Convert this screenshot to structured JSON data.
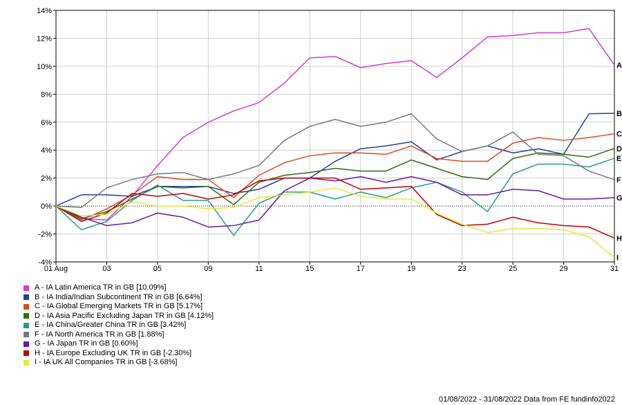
{
  "chart_data": {
    "type": "line",
    "x_ticks": [
      "01 Aug",
      "03",
      "05",
      "09",
      "11",
      "15",
      "17",
      "19",
      "23",
      "25",
      "29",
      "31"
    ],
    "x_tick_positions": [
      1,
      3,
      5,
      7,
      9,
      11,
      13,
      15,
      17,
      19,
      21,
      23
    ],
    "x_points": [
      1,
      2,
      3,
      4,
      5,
      6,
      7,
      8,
      9,
      10,
      11,
      12,
      13,
      14,
      15,
      16,
      17,
      18,
      19,
      20,
      21,
      22,
      23
    ],
    "y_ticks": [
      "14%",
      "12%",
      "10%",
      "8%",
      "6%",
      "4%",
      "2%",
      "0%",
      "-2%",
      "-4%"
    ],
    "ylim": [
      -4,
      14
    ],
    "xlim": [
      1,
      23
    ],
    "grid": true,
    "legend_placement": "bottom-left",
    "series": [
      {
        "name": "A - IA Latin America TR in GB [10.09%]",
        "end_label": "A",
        "color": "#d43bd4",
        "values": [
          0,
          -0.9,
          -1.0,
          0.7,
          2.9,
          4.9,
          6.0,
          6.8,
          7.4,
          8.8,
          10.6,
          10.7,
          9.9,
          10.2,
          10.4,
          9.2,
          10.6,
          12.1,
          12.2,
          12.4,
          12.4,
          12.7,
          10.09
        ]
      },
      {
        "name": "B - IA India/Indian Subcontinent TR in GB [6.64%]",
        "end_label": "B",
        "color": "#2040a0",
        "values": [
          0,
          0.8,
          0.8,
          0.7,
          1.4,
          1.4,
          1.4,
          0.9,
          1.2,
          2.0,
          2.0,
          3.2,
          4.1,
          4.3,
          4.6,
          3.3,
          3.9,
          4.3,
          3.8,
          4.1,
          3.7,
          6.6,
          6.64
        ]
      },
      {
        "name": "C - IA Global Emerging Markets TR in GB [5.17%]",
        "end_label": "C",
        "color": "#e04a20",
        "values": [
          0,
          -1.0,
          -0.2,
          0.8,
          2.1,
          1.9,
          1.9,
          0.6,
          2.2,
          3.1,
          3.6,
          3.8,
          3.8,
          3.7,
          4.3,
          3.4,
          3.2,
          3.2,
          4.5,
          4.9,
          4.7,
          4.9,
          5.17
        ]
      },
      {
        "name": "D - IA Asia Pacific Excluding Japan TR in GB [4.12%]",
        "end_label": "D",
        "color": "#2e6b10",
        "values": [
          0,
          -0.9,
          -0.4,
          0.5,
          1.4,
          1.3,
          1.4,
          0.1,
          1.7,
          2.2,
          2.4,
          2.7,
          2.5,
          2.5,
          3.3,
          2.7,
          2.1,
          1.9,
          3.4,
          3.8,
          3.7,
          3.5,
          4.12
        ]
      },
      {
        "name": "E - IA China/Greater China TR in GB [3.42%]",
        "end_label": "E",
        "color": "#2a9a90",
        "values": [
          0,
          -1.7,
          -1.1,
          0.4,
          1.5,
          0.4,
          0.4,
          -2.1,
          0.2,
          1.0,
          1.0,
          0.5,
          1.0,
          0.6,
          1.3,
          1.7,
          1.0,
          -0.4,
          2.3,
          3.0,
          3.0,
          2.8,
          3.42
        ]
      },
      {
        "name": "F - IA North America TR in GB [1.88%]",
        "end_label": "F",
        "color": "#7a7a7a",
        "values": [
          0,
          -0.1,
          1.3,
          1.9,
          2.3,
          2.4,
          1.9,
          2.3,
          2.9,
          4.7,
          5.7,
          6.2,
          5.7,
          6.0,
          6.6,
          4.8,
          3.9,
          4.3,
          5.3,
          3.7,
          3.6,
          2.5,
          1.88
        ]
      },
      {
        "name": "G - IA Japan TR in GB [0.60%]",
        "end_label": "G",
        "color": "#6a18a8",
        "values": [
          0,
          -0.8,
          -1.4,
          -1.2,
          -0.5,
          -0.8,
          -1.5,
          -1.4,
          -1.0,
          1.1,
          2.0,
          1.8,
          2.1,
          1.7,
          2.1,
          1.7,
          0.8,
          0.8,
          1.2,
          1.1,
          0.5,
          0.5,
          0.6
        ]
      },
      {
        "name": "H - IA Europe Excluding UK TR in GB [-2.30%]",
        "end_label": "H",
        "color": "#c00000",
        "values": [
          0,
          -1.1,
          -0.5,
          0.9,
          0.7,
          0.9,
          0.5,
          0.8,
          1.8,
          2.0,
          2.0,
          2.0,
          1.2,
          1.3,
          1.4,
          -0.6,
          -1.4,
          -1.3,
          -0.8,
          -1.2,
          -1.4,
          -1.5,
          -2.3
        ]
      },
      {
        "name": "I - IA UK All Companies TR in GB [-3.68%]",
        "end_label": "I",
        "color": "#e8e830",
        "values": [
          0,
          -0.7,
          -0.6,
          0.3,
          0.0,
          0.0,
          -0.2,
          -0.1,
          0.6,
          0.8,
          1.0,
          1.3,
          0.7,
          0.5,
          0.5,
          -0.5,
          -1.3,
          -1.9,
          -1.6,
          -1.6,
          -1.7,
          -2.2,
          -3.68
        ]
      }
    ]
  },
  "footer": "01/08/2022 - 31/08/2022 Data from FE fundinfo2022"
}
